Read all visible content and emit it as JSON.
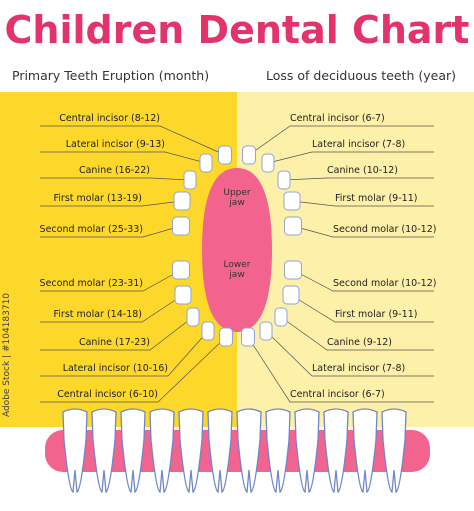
{
  "header": {
    "title": "Children Dental Chart"
  },
  "left": {
    "heading": "Primary Teeth Eruption (month)",
    "labels": [
      "Central incisor (8-12)",
      "Lateral incisor (9-13)",
      "Canine (16-22)",
      "First molar (13-19)",
      "Second molar (25-33)",
      "Second molar (23-31)",
      "First molar (14-18)",
      "Canine (17-23)",
      "Lateral incisor (10-16)",
      "Central incisor (6-10)"
    ]
  },
  "right": {
    "heading": "Loss of deciduous teeth (year)",
    "labels": [
      "Central incisor (6-7)",
      "Lateral incisor (7-8)",
      "Canine (10-12)",
      "First molar (9-11)",
      "Second molar (10-12)",
      "Second molar (10-12)",
      "First molar (9-11)",
      "Canine (9-12)",
      "Lateral incisor (7-8)",
      "Central incisor (6-7)"
    ]
  },
  "jaw": {
    "upper": "Upper jaw",
    "lower": "Lower jaw"
  },
  "watermark": "Adobe Stock | #104183710"
}
